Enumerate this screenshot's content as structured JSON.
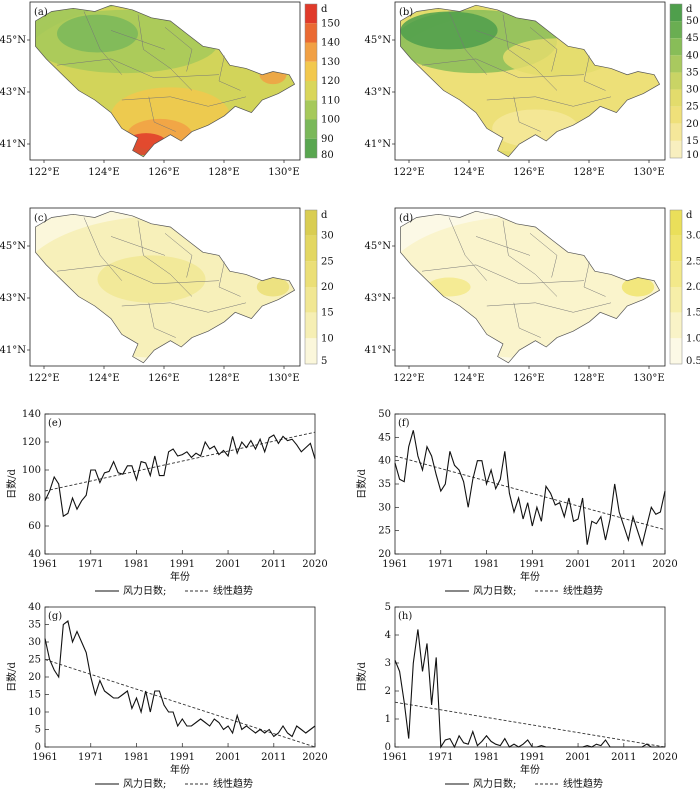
{
  "maps": [
    {
      "label": "(a)",
      "unit": "d",
      "colorbar_ticks": [
        "150",
        "140",
        "130",
        "120",
        "110",
        "100",
        "90",
        "80"
      ],
      "colors": [
        "#e03a2a",
        "#ea6a33",
        "#f1a044",
        "#f2c84d",
        "#d9d65a",
        "#a6c95b",
        "#7ab85a",
        "#59a650"
      ]
    },
    {
      "label": "(b)",
      "unit": "d",
      "colorbar_ticks": [
        "50",
        "45",
        "40",
        "35",
        "30",
        "25",
        "20",
        "15",
        "10"
      ],
      "colors": [
        "#4f9f4c",
        "#6aae52",
        "#88bd58",
        "#a9c95f",
        "#c9d465",
        "#e3dc6c",
        "#efe07a",
        "#f5e79a",
        "#f8efbf"
      ]
    },
    {
      "label": "(c)",
      "unit": "d",
      "colorbar_ticks": [
        "30",
        "25",
        "20",
        "15",
        "10",
        "5"
      ],
      "colors": [
        "#d9cd52",
        "#e3d762",
        "#ebdf77",
        "#f1e793",
        "#f6efb4",
        "#fbf7db"
      ]
    },
    {
      "label": "(d)",
      "unit": "d",
      "colorbar_ticks": [
        "3.0",
        "2.5",
        "2.0",
        "1.5",
        "1.0",
        "0.5"
      ],
      "colors": [
        "#eadf5a",
        "#f0e46f",
        "#f3e98a",
        "#f6eea8",
        "#f9f3c7",
        "#fcf9e6"
      ]
    }
  ],
  "map_axes": {
    "x_ticks": [
      "122°E",
      "124°E",
      "126°E",
      "128°E",
      "130°E"
    ],
    "y_ticks": [
      "45°N",
      "43°N",
      "41°N"
    ]
  },
  "legend": {
    "line_label": "风力日数;",
    "trend_label": "线性趋势"
  },
  "chart_data": [
    {
      "type": "line",
      "label": "(e)",
      "xlabel": "年份",
      "ylabel": "日数/d",
      "ylim": [
        40,
        140
      ],
      "y_ticks": [
        40,
        60,
        80,
        100,
        120,
        140
      ],
      "x_ticks": [
        1961,
        1971,
        1981,
        1991,
        2001,
        2011,
        2020
      ],
      "x_start": 1961,
      "values": [
        78,
        85,
        95,
        90,
        67,
        69,
        80,
        72,
        78,
        82,
        100,
        100,
        91,
        98,
        99,
        106,
        98,
        97,
        103,
        103,
        93,
        106,
        105,
        96,
        110,
        96,
        96,
        113,
        115,
        110,
        111,
        113,
        109,
        112,
        110,
        120,
        115,
        117,
        111,
        114,
        110,
        124,
        112,
        120,
        116,
        121,
        115,
        122,
        113,
        123,
        125,
        119,
        124,
        121,
        122,
        118,
        113,
        116,
        119,
        108
      ],
      "trend": [
        85,
        127
      ]
    },
    {
      "type": "line",
      "label": "(f)",
      "xlabel": "年份",
      "ylabel": "日数/d",
      "ylim": [
        20,
        50
      ],
      "y_ticks": [
        20,
        25,
        30,
        35,
        40,
        45,
        50
      ],
      "x_ticks": [
        1961,
        1971,
        1981,
        1991,
        2001,
        2011,
        2020
      ],
      "x_start": 1961,
      "values": [
        39.5,
        36,
        35.5,
        43,
        46.5,
        41,
        38,
        43,
        41,
        37,
        33.5,
        35,
        42,
        39,
        38,
        35.5,
        30,
        36,
        40,
        40,
        35,
        38,
        34,
        36,
        42,
        33,
        29,
        32,
        27.5,
        31,
        26,
        30,
        27,
        34.5,
        33,
        30.5,
        31,
        28,
        32,
        27,
        27.5,
        32,
        22,
        27,
        26.5,
        28,
        23,
        27.5,
        35,
        29,
        26,
        23,
        28,
        25,
        22,
        26,
        30,
        28.5,
        29,
        33.5
      ],
      "trend": [
        41,
        25.2
      ]
    },
    {
      "type": "line",
      "label": "(g)",
      "xlabel": "年份",
      "ylabel": "日数/d",
      "ylim": [
        0,
        40
      ],
      "y_ticks": [
        0,
        5,
        10,
        15,
        20,
        25,
        30,
        35,
        40
      ],
      "x_ticks": [
        1961,
        1971,
        1981,
        1991,
        2001,
        2011,
        2020
      ],
      "x_start": 1961,
      "values": [
        31,
        25,
        22,
        20,
        35,
        36,
        30,
        33,
        30,
        27,
        20,
        15,
        19,
        16,
        15,
        14,
        14,
        15,
        16,
        11,
        14,
        10,
        16,
        10,
        16,
        16,
        12,
        10,
        10,
        6,
        8,
        6,
        6,
        7,
        8,
        7,
        6,
        8,
        7,
        5,
        6,
        4,
        9,
        5,
        6,
        5,
        4,
        5,
        4,
        5,
        3,
        4,
        6,
        4,
        3,
        6,
        5,
        4,
        5,
        6
      ],
      "trend": [
        25,
        0
      ]
    },
    {
      "type": "line",
      "label": "(h)",
      "xlabel": "年份",
      "ylabel": "日数/d",
      "ylim": [
        0,
        5
      ],
      "y_ticks": [
        0,
        1,
        2,
        3,
        4,
        5
      ],
      "x_ticks": [
        1961,
        1971,
        1981,
        1991,
        2001,
        2011,
        2020
      ],
      "x_start": 1961,
      "values": [
        3.1,
        2.7,
        1.6,
        0.3,
        3,
        4.2,
        2.7,
        3.7,
        1.5,
        3.2,
        0,
        0.25,
        0.3,
        0,
        0.4,
        0.15,
        0.1,
        0.55,
        0.05,
        0.2,
        0.4,
        0.2,
        0.1,
        0.05,
        0.3,
        0,
        0.1,
        0,
        0.1,
        0.25,
        0,
        0,
        0.05,
        0,
        0,
        0,
        0,
        0,
        0,
        0,
        0,
        0,
        0.05,
        0,
        0.1,
        0.05,
        0.25,
        0,
        0,
        0,
        0,
        0,
        0,
        0,
        0,
        0.1,
        0,
        0,
        0,
        0
      ],
      "trend": [
        1.6,
        0
      ]
    }
  ]
}
